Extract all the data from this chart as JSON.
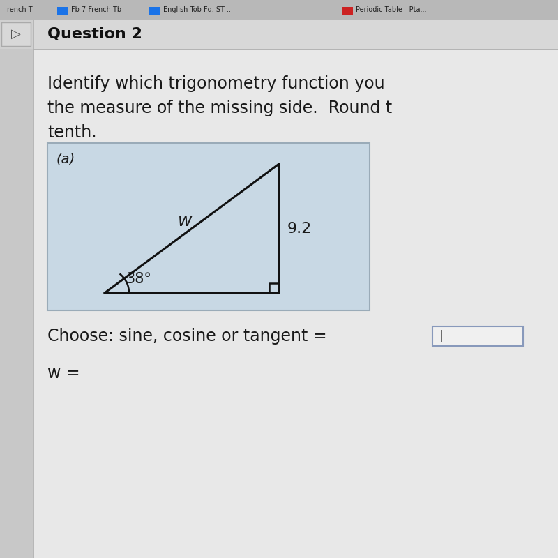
{
  "bg_color": "#c8c8c8",
  "content_bg": "#e8e8e8",
  "header_text": "Question 2",
  "body_line1": "Identify which trigonometry function you",
  "body_line2": "the measure of the missing side.  Round t",
  "body_line3": "tenth.",
  "label_a": "(a)",
  "hyp_label": "w",
  "side_label": "9.2",
  "angle_label": "38°",
  "triangle_bg": "#c8d8e4",
  "choose_text": "Choose: sine, cosine or tangent =",
  "w_eq_text": "w =",
  "text_color": "#1a1a1a",
  "tab_bg": "#b8b8b8",
  "tab_text_color": "#222222",
  "header_bar_bg": "#d4d4d4",
  "nav_bg": "#d0d0d0",
  "input_box_color": "#f0f0f0",
  "input_border": "#8899bb",
  "body_fontsize": 17,
  "header_fontsize": 16
}
